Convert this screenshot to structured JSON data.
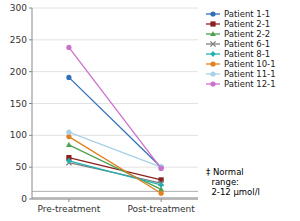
{
  "chart_data": {
    "type": "line",
    "categories": [
      "Pre-treatment",
      "Post-treatment"
    ],
    "series": [
      {
        "name": "Patient 1-1",
        "color": "#3070b8",
        "marker": "circle",
        "values": [
          191,
          50
        ]
      },
      {
        "name": "Patient 2-1",
        "color": "#8b2020",
        "marker": "square",
        "values": [
          65,
          30
        ]
      },
      {
        "name": "Patient 2-2",
        "color": "#50a050",
        "marker": "triangle",
        "values": [
          85,
          15
        ]
      },
      {
        "name": "Patient 6-1",
        "color": "#808080",
        "marker": "x",
        "values": [
          57,
          25
        ]
      },
      {
        "name": "Patient 8-1",
        "color": "#20b0b0",
        "marker": "diamond",
        "values": [
          60,
          22
        ]
      },
      {
        "name": "Patient 10-1",
        "color": "#e08020",
        "marker": "circle",
        "values": [
          98,
          9
        ]
      },
      {
        "name": "Patient 11-1",
        "color": "#a8d0e8",
        "marker": "circle",
        "values": [
          105,
          50
        ]
      },
      {
        "name": "Patient 12-1",
        "color": "#cc70cc",
        "marker": "circle",
        "values": [
          238,
          48
        ]
      }
    ],
    "reference_lines": [
      2,
      12
    ],
    "annotations": [
      "‡ Normal\n  range:\n  2-12 μmol/l"
    ],
    "ylim": [
      0,
      300
    ],
    "yticks": [
      0,
      50,
      100,
      150,
      200,
      250,
      300
    ],
    "grid": true,
    "legend": "upper right"
  }
}
